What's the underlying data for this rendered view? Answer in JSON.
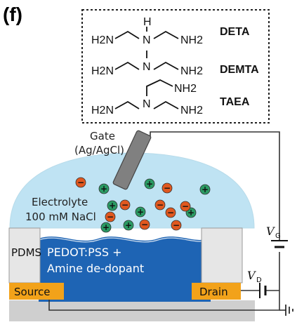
{
  "panel_label": "(f)",
  "molecules": [
    {
      "name": "DETA",
      "left": "H2N",
      "center": "H",
      "center_n": "N",
      "right": "NH2"
    },
    {
      "name": "DEMTA",
      "left": "H2N",
      "center_n": "N",
      "right": "NH2"
    },
    {
      "name": "TAEA",
      "left": "H2N",
      "center_n": "N",
      "right": "NH2",
      "top": "NH2"
    }
  ],
  "gate_label": [
    "Gate",
    "(Ag/AgCl)"
  ],
  "electrolyte_label": [
    "Electrolyte",
    "100 mM NaCl"
  ],
  "channel_label": [
    "PEDOT:PSS +",
    "Amine de-dopant"
  ],
  "pdms_label": "PDMS",
  "source_label": "Source",
  "drain_label": "Drain",
  "vg_label": "V",
  "vg_sub": "G",
  "vd_label": "V",
  "vd_sub": "D",
  "ion_signs": {
    "cation": "+",
    "anion": "−"
  },
  "colors": {
    "electrolyte": "#bfe3f3",
    "channel": "#1e64b4",
    "contacts": "#f2a21a",
    "pdms": "#e6e6e6",
    "substrate": "#cfcfcf",
    "cation": "#2a9a63",
    "anion": "#e0581f",
    "gate": "#808080"
  },
  "cations": 8,
  "anions": 9
}
